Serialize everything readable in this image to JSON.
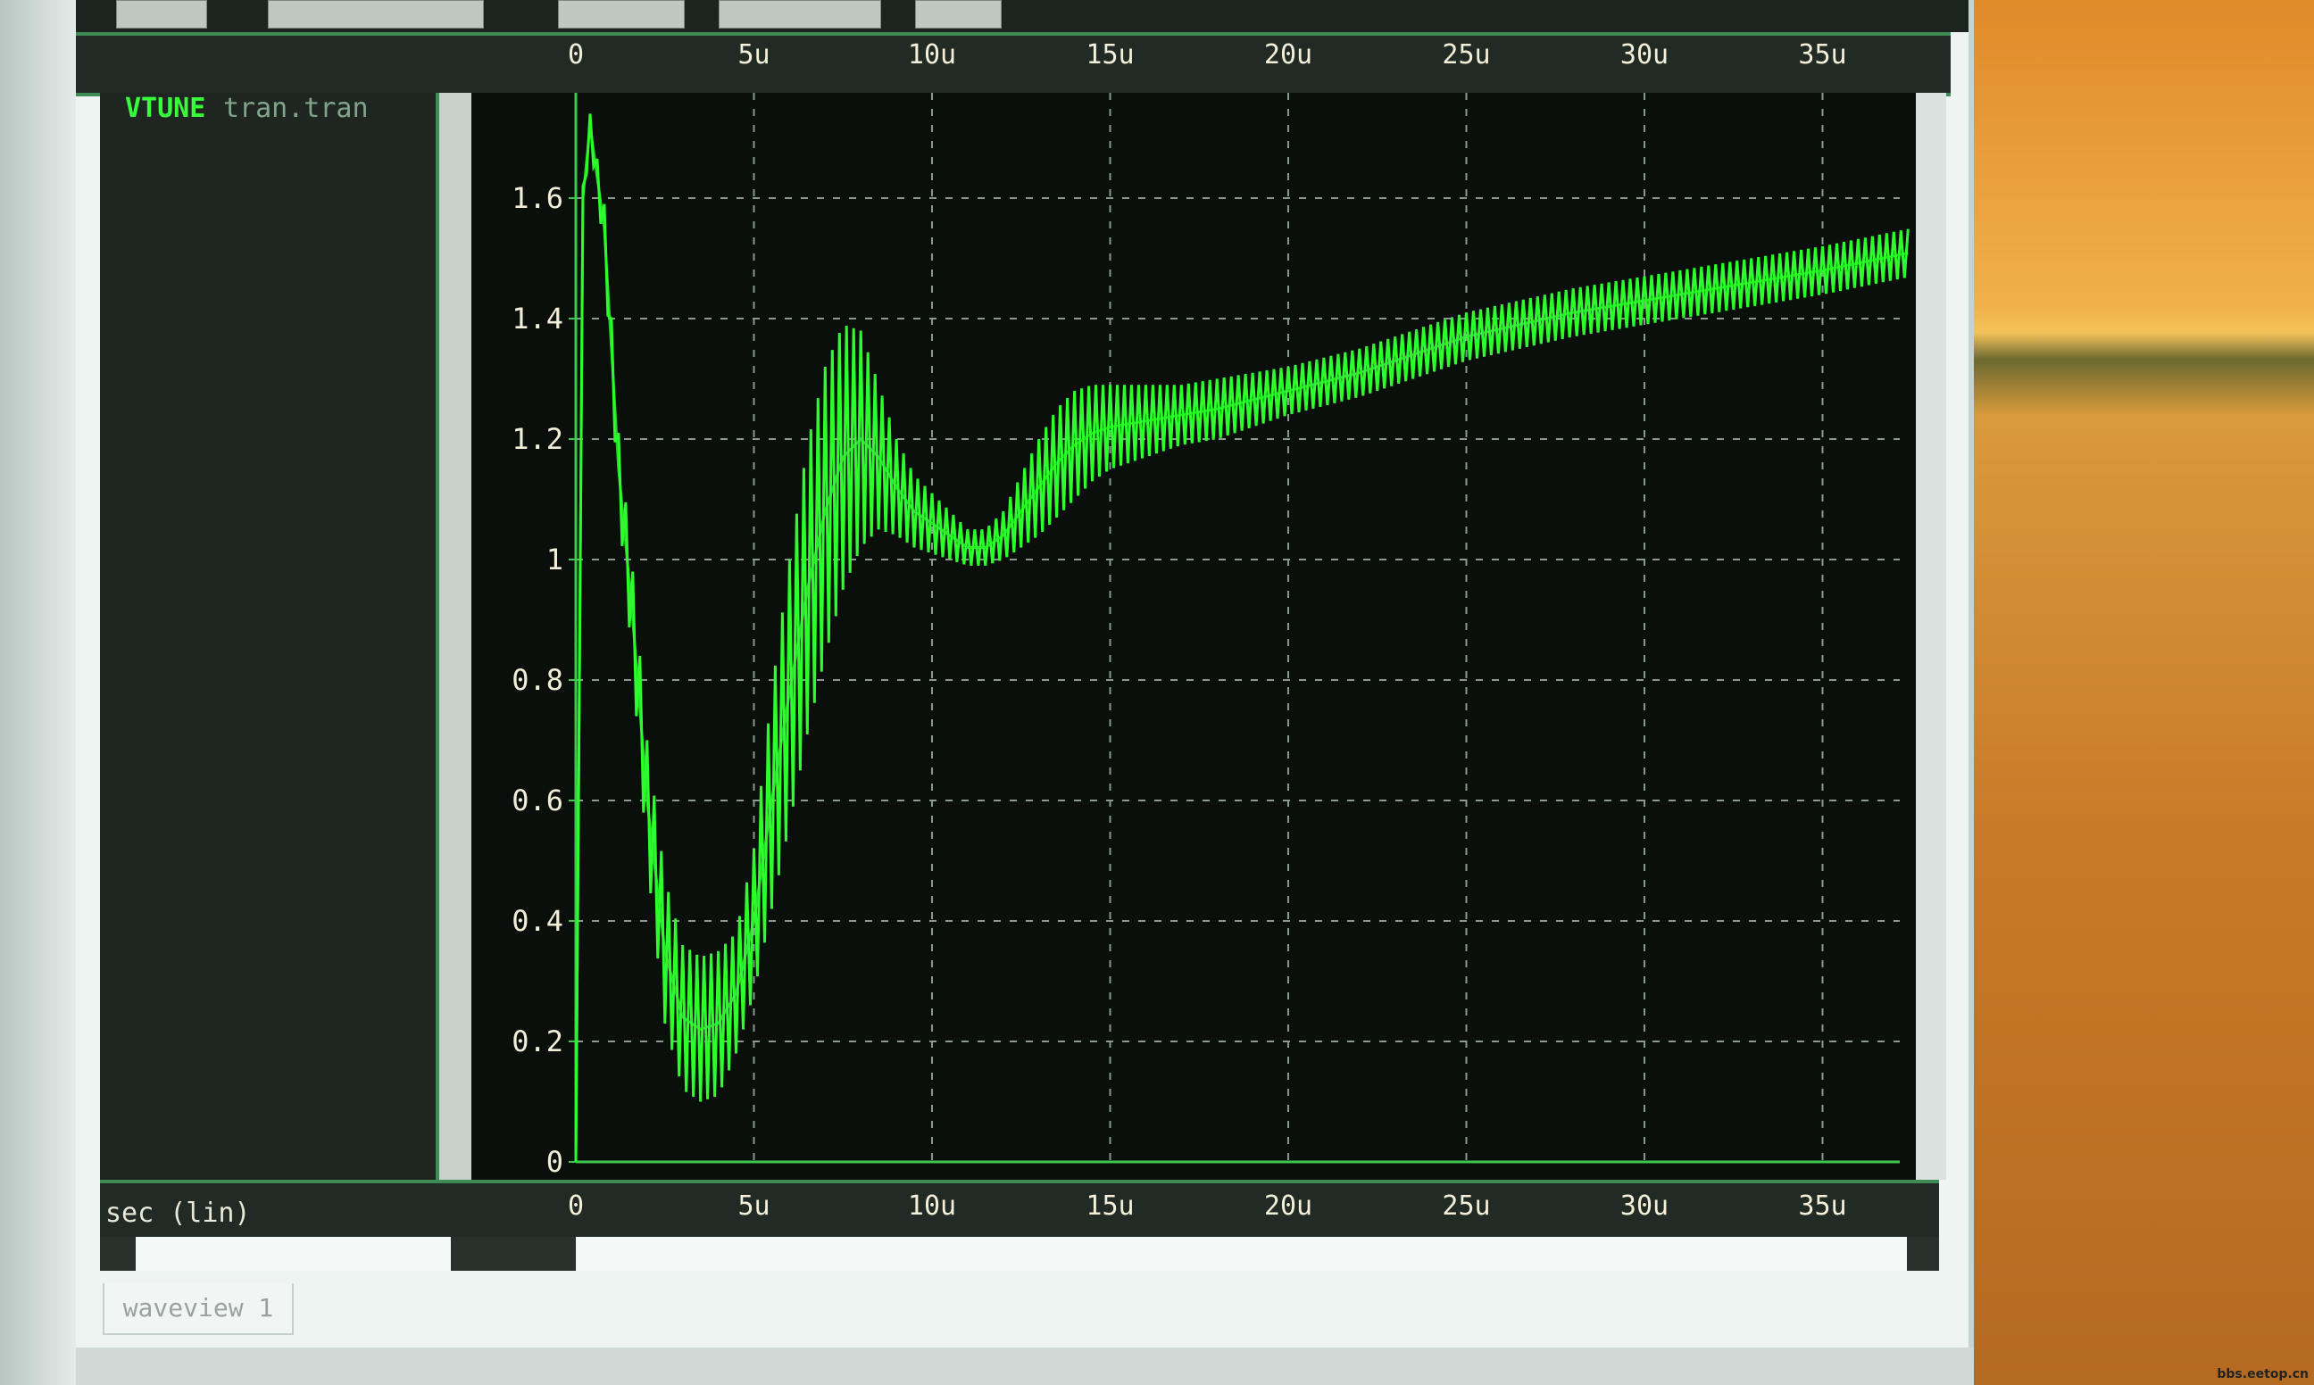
{
  "waveform": {
    "signal_name": "VTUNE",
    "signal_source": "tran.tran",
    "x_axis_label": "sec (lin)",
    "tab_label": "waveview 1"
  },
  "watermark": "bbs.eetop.cn",
  "chart_data": {
    "type": "line",
    "xlabel": "sec (lin)",
    "ylabel": "",
    "xlim": [
      -0.5,
      37.5
    ],
    "ylim": [
      0,
      1.75
    ],
    "x_unit": "us",
    "x_ticks": [
      "0",
      "5u",
      "10u",
      "15u",
      "20u",
      "25u",
      "30u",
      "35u"
    ],
    "x_tick_values": [
      0,
      5,
      10,
      15,
      20,
      25,
      30,
      35
    ],
    "y_ticks": [
      "0",
      "0.2",
      "0.4",
      "0.6",
      "0.8",
      "1",
      "1.2",
      "1.4",
      "1.6"
    ],
    "y_tick_values": [
      0,
      0.2,
      0.4,
      0.6,
      0.8,
      1,
      1.2,
      1.4,
      1.6
    ],
    "grid": true,
    "line_color": "#2cff2c",
    "series": [
      {
        "name": "VTUNE",
        "x": [
          0,
          0.2,
          0.4,
          0.8,
          1.2,
          1.6,
          2.0,
          2.5,
          3.0,
          3.5,
          4.0,
          4.5,
          5.0,
          5.5,
          6.0,
          6.5,
          7.0,
          7.5,
          8.0,
          8.5,
          9.0,
          9.5,
          10.0,
          10.5,
          11.0,
          11.5,
          12.0,
          12.5,
          13.0,
          13.5,
          14.0,
          14.5,
          15.0,
          16.0,
          17.0,
          18.0,
          20.0,
          22.0,
          25.0,
          28.0,
          30.0,
          33.0,
          35.0,
          37.5
        ],
        "y": [
          0,
          1.6,
          1.72,
          1.55,
          1.15,
          0.9,
          0.6,
          0.35,
          0.24,
          0.22,
          0.23,
          0.28,
          0.4,
          0.6,
          0.78,
          0.95,
          1.08,
          1.17,
          1.2,
          1.17,
          1.12,
          1.08,
          1.06,
          1.04,
          1.02,
          1.02,
          1.04,
          1.08,
          1.12,
          1.16,
          1.19,
          1.21,
          1.22,
          1.23,
          1.24,
          1.25,
          1.28,
          1.31,
          1.37,
          1.41,
          1.43,
          1.46,
          1.48,
          1.51
        ],
        "ripple": [
          0,
          0.02,
          0.02,
          0.04,
          0.06,
          0.08,
          0.1,
          0.12,
          0.12,
          0.12,
          0.12,
          0.1,
          0.12,
          0.18,
          0.22,
          0.24,
          0.24,
          0.22,
          0.18,
          0.12,
          0.08,
          0.06,
          0.05,
          0.04,
          0.03,
          0.03,
          0.04,
          0.06,
          0.08,
          0.09,
          0.09,
          0.08,
          0.07,
          0.06,
          0.05,
          0.05,
          0.04,
          0.04,
          0.04,
          0.04,
          0.04,
          0.04,
          0.04,
          0.04
        ]
      }
    ]
  }
}
